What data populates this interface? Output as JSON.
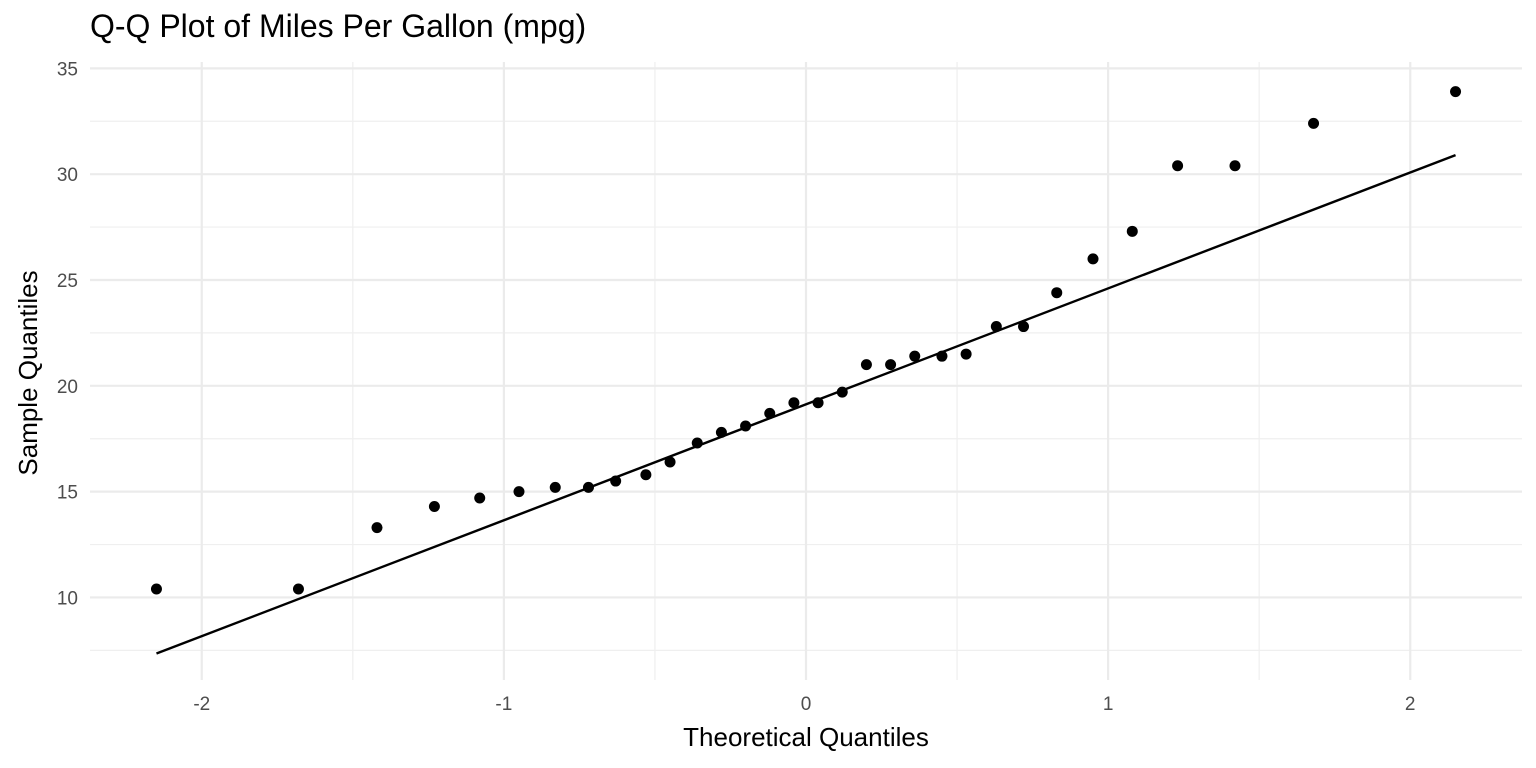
{
  "chart_data": {
    "type": "scatter",
    "title": "Q-Q Plot of Miles Per Gallon (mpg)",
    "xlabel": "Theoretical Quantiles",
    "ylabel": "Sample Quantiles",
    "xlim": [
      -2.37,
      2.37
    ],
    "ylim": [
      6.1,
      35.3
    ],
    "x_ticks": [
      -2,
      -1,
      0,
      1,
      2
    ],
    "x_tick_labels": [
      "-2",
      "-1",
      "0",
      "1",
      "2"
    ],
    "y_ticks": [
      10,
      15,
      20,
      25,
      30,
      35
    ],
    "y_tick_labels": [
      "10",
      "15",
      "20",
      "25",
      "30",
      "35"
    ],
    "grid": true,
    "series": [
      {
        "type": "scatter",
        "x": [
          -2.15,
          -1.68,
          -1.42,
          -1.23,
          -1.08,
          -0.95,
          -0.83,
          -0.72,
          -0.63,
          -0.53,
          -0.45,
          -0.36,
          -0.28,
          -0.2,
          -0.12,
          -0.04,
          0.04,
          0.12,
          0.2,
          0.28,
          0.36,
          0.45,
          0.53,
          0.63,
          0.72,
          0.83,
          0.95,
          1.08,
          1.23,
          1.42,
          1.68,
          2.15
        ],
        "y": [
          10.4,
          10.4,
          13.3,
          14.3,
          14.7,
          15.0,
          15.2,
          15.2,
          15.5,
          15.8,
          16.4,
          17.3,
          17.8,
          18.1,
          18.7,
          19.2,
          19.2,
          19.7,
          21.0,
          21.0,
          21.4,
          21.4,
          21.5,
          22.8,
          22.8,
          24.4,
          26.0,
          27.3,
          30.4,
          30.4,
          32.4,
          33.9
        ]
      },
      {
        "type": "line",
        "x": [
          -2.15,
          2.15
        ],
        "y": [
          7.35,
          30.9
        ]
      }
    ]
  }
}
